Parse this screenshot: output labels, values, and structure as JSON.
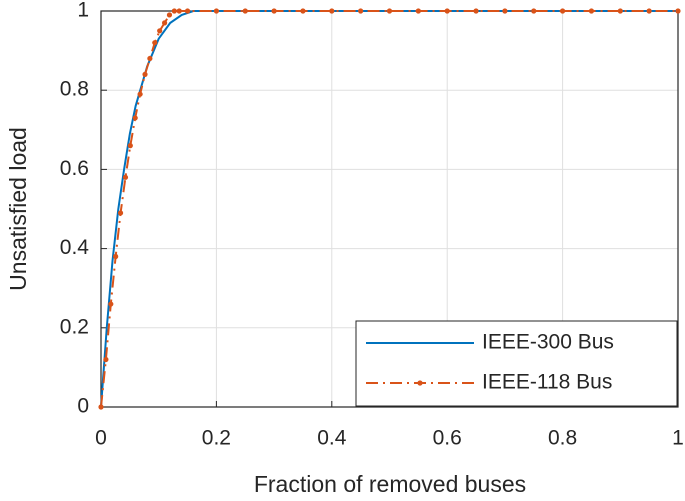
{
  "chart_data": {
    "type": "line",
    "xlabel": "Fraction of removed buses",
    "ylabel": "Unsatisfied load",
    "xlim": [
      0,
      1
    ],
    "ylim": [
      0,
      1
    ],
    "xticks": [
      0,
      0.2,
      0.4,
      0.6,
      0.8,
      1
    ],
    "yticks": [
      0,
      0.2,
      0.4,
      0.6,
      0.8,
      1
    ],
    "grid": true,
    "legend": "lower right",
    "series": [
      {
        "name": "IEEE-300 Bus",
        "color": "#0072bd",
        "style": "solid",
        "marker": false,
        "x": [
          0,
          0.01,
          0.02,
          0.03,
          0.04,
          0.05,
          0.06,
          0.08,
          0.1,
          0.12,
          0.14,
          0.16,
          1
        ],
        "values": [
          0,
          0.2,
          0.37,
          0.5,
          0.6,
          0.69,
          0.76,
          0.86,
          0.93,
          0.97,
          0.99,
          1,
          1
        ]
      },
      {
        "name": "IEEE-118 Bus",
        "color": "#d95319",
        "style": "dashdot",
        "marker": true,
        "x": [
          0,
          0.0085,
          0.017,
          0.0254,
          0.0339,
          0.0424,
          0.0508,
          0.0593,
          0.0678,
          0.0763,
          0.0847,
          0.0932,
          0.1017,
          0.1102,
          0.1186,
          0.1271,
          0.1356,
          0.15,
          0.2,
          0.25,
          0.3,
          0.35,
          0.4,
          0.45,
          0.5,
          0.55,
          0.6,
          0.65,
          0.7,
          0.75,
          0.8,
          0.85,
          0.9,
          0.95,
          1
        ],
        "values": [
          0,
          0.12,
          0.26,
          0.38,
          0.49,
          0.58,
          0.66,
          0.73,
          0.79,
          0.84,
          0.88,
          0.92,
          0.95,
          0.97,
          0.99,
          1,
          1,
          1,
          1,
          1,
          1,
          1,
          1,
          1,
          1,
          1,
          1,
          1,
          1,
          1,
          1,
          1,
          1,
          1,
          1
        ]
      }
    ]
  }
}
